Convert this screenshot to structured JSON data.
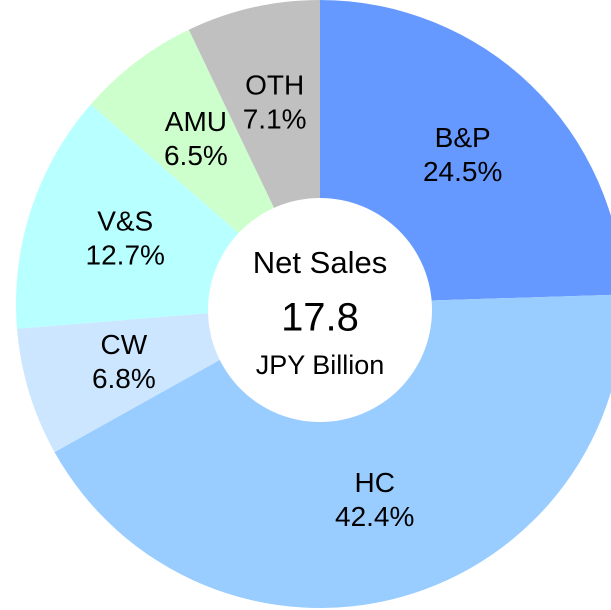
{
  "chart_data": {
    "type": "donut",
    "categories": [
      "B&P",
      "HC",
      "CW",
      "V&S",
      "AMU",
      "OTH"
    ],
    "values": [
      24.5,
      42.4,
      6.8,
      12.7,
      6.5,
      7.1
    ],
    "value_labels": [
      "24.5%",
      "42.4%",
      "6.8%",
      "12.7%",
      "6.5%",
      "7.1%"
    ],
    "colors": [
      "#6699ff",
      "#99ccff",
      "#cce6ff",
      "#b8ffff",
      "#ccffcc",
      "#c0c0c0"
    ],
    "center_title": "Net Sales",
    "total": 17.8,
    "center_unit": "JPY Billion"
  }
}
